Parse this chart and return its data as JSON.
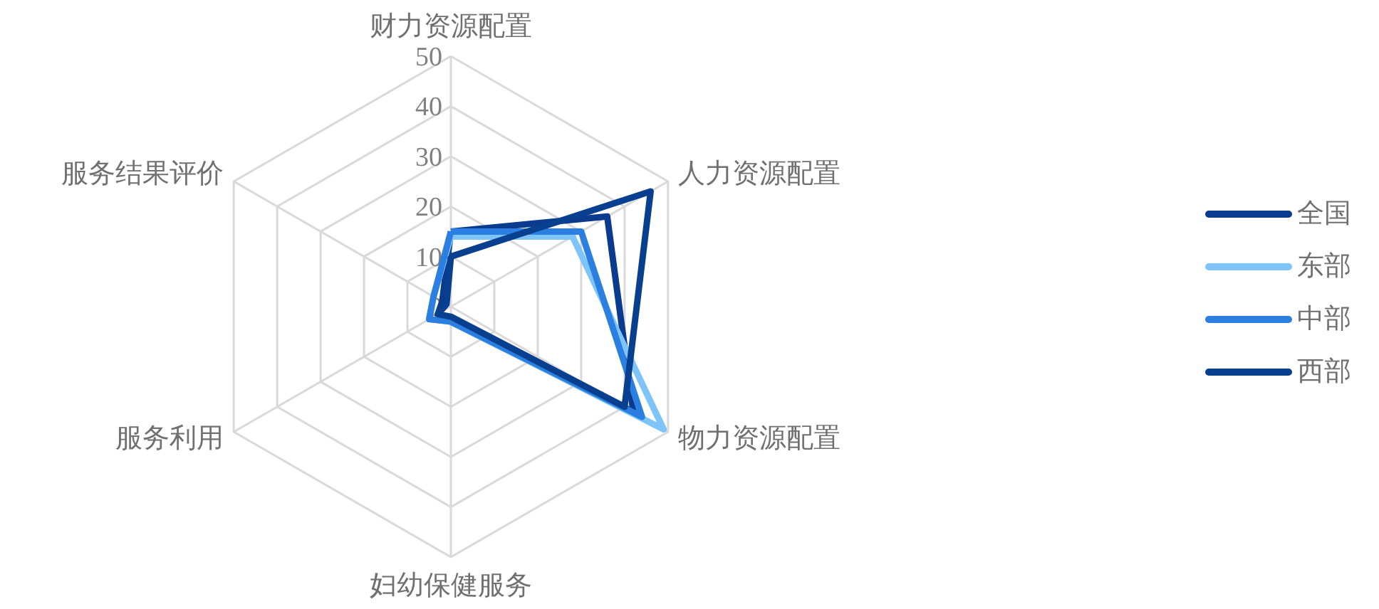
{
  "chart_data": {
    "type": "radar",
    "categories": [
      "财力资源配置",
      "人力资源配置",
      "物力资源配置",
      "妇幼保健服务",
      "服务利用",
      "服务结果评价"
    ],
    "ylim": [
      0,
      50
    ],
    "yticks": [
      0,
      10,
      20,
      30,
      40,
      50
    ],
    "grid": true,
    "legend": "right",
    "marker": "none",
    "line_style": "solid",
    "series": [
      {
        "name": "全国",
        "color": "#0b3b8f",
        "values": [
          15,
          36,
          42,
          3,
          3,
          2
        ]
      },
      {
        "name": "东部",
        "color": "#7ec4f8",
        "values": [
          14,
          28,
          49,
          3,
          5,
          4
        ]
      },
      {
        "name": "中部",
        "color": "#2a7fe0",
        "values": [
          15,
          30,
          44,
          3,
          5,
          4
        ]
      },
      {
        "name": "西部",
        "color": "#08408f",
        "values": [
          10,
          46,
          40,
          2,
          3,
          1
        ]
      }
    ]
  }
}
